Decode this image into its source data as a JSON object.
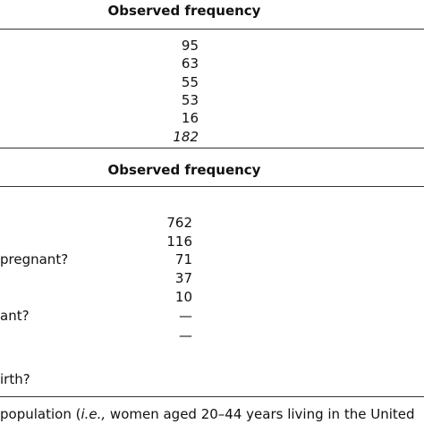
{
  "tables": [
    {
      "header": "Observed frequency",
      "rows": [
        {
          "value": "95"
        },
        {
          "value": "63"
        },
        {
          "value": "55"
        },
        {
          "value": "53"
        },
        {
          "value": "16"
        },
        {
          "value": "182"
        }
      ]
    },
    {
      "header": "Observed frequency",
      "rows": [
        {
          "label": null,
          "value": "762"
        },
        {
          "label": null,
          "value": "116"
        },
        {
          "label": "pregnant?",
          "value": "71"
        },
        {
          "label": null,
          "value": "37"
        },
        {
          "label": null,
          "value": "10"
        },
        {
          "label": "ant?",
          "value": "—"
        },
        {
          "label": null,
          "value": "—"
        },
        {
          "label": "irth?",
          "value": null
        }
      ]
    }
  ],
  "footnote": {
    "before": "population (",
    "italic": "i.e.,",
    "after": " women aged 20–44 years living in the United"
  }
}
